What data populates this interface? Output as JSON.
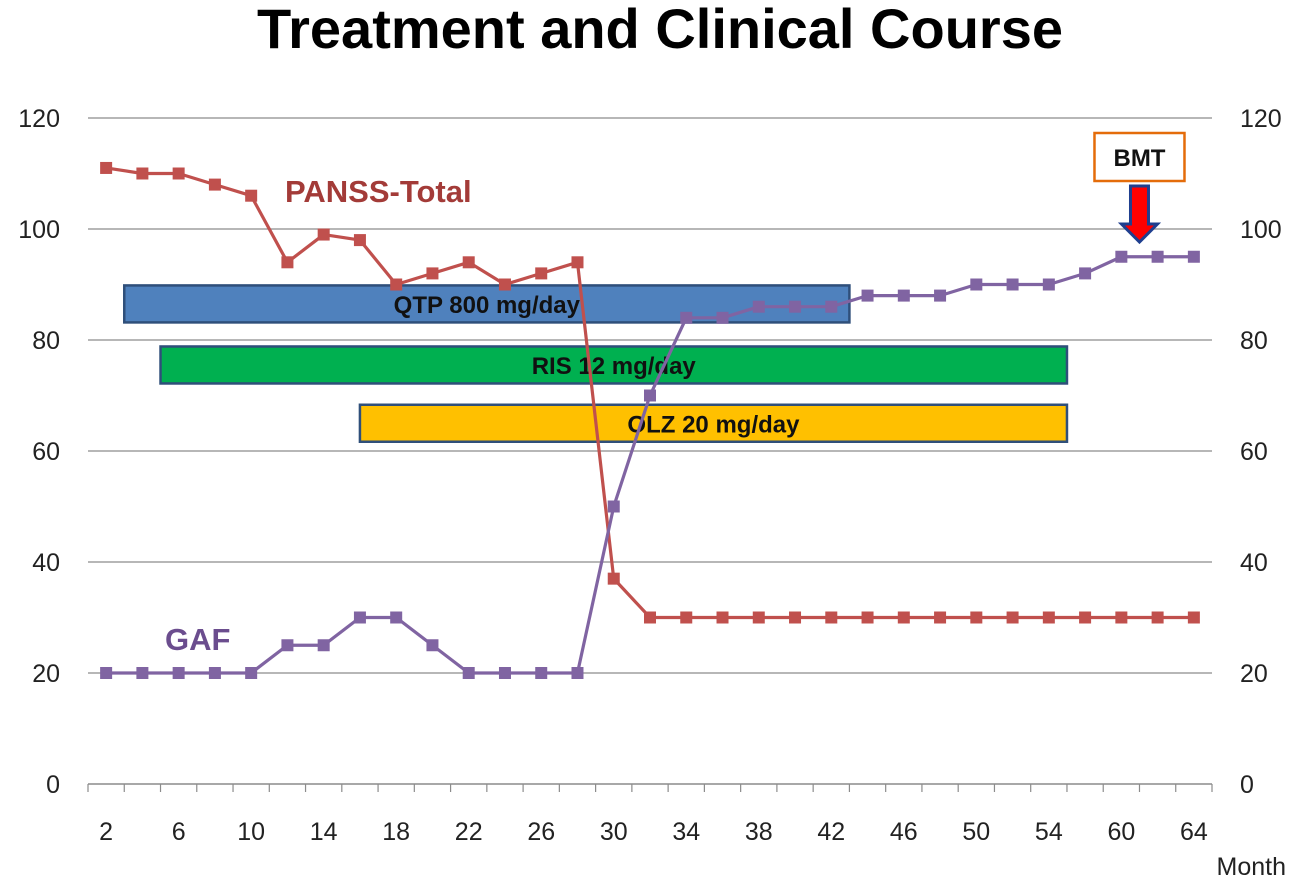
{
  "chart_data": {
    "type": "line",
    "title": "Treatment and Clinical Course",
    "xlabel": "Month",
    "ylabel": "",
    "ylim": [
      0,
      120
    ],
    "yticks": [
      0,
      20,
      40,
      60,
      80,
      100,
      120
    ],
    "x_tick_labels": [
      "2",
      "6",
      "10",
      "14",
      "18",
      "22",
      "26",
      "30",
      "34",
      "38",
      "42",
      "46",
      "50",
      "54",
      "60",
      "64"
    ],
    "point_count": 31,
    "series": [
      {
        "name": "PANSS-Total",
        "color": "#C0504D",
        "values": [
          111,
          110,
          110,
          108,
          106,
          94,
          99,
          98,
          90,
          92,
          94,
          90,
          92,
          94,
          37,
          30,
          30,
          30,
          30,
          30,
          30,
          30,
          30,
          30,
          30,
          30,
          30,
          30,
          30,
          30,
          30
        ]
      },
      {
        "name": "GAF",
        "color": "#8064A2",
        "values": [
          20,
          20,
          20,
          20,
          20,
          25,
          25,
          30,
          30,
          25,
          20,
          20,
          20,
          20,
          50,
          70,
          84,
          84,
          86,
          86,
          86,
          88,
          88,
          88,
          90,
          90,
          90,
          92,
          95,
          95,
          95
        ]
      }
    ],
    "series_labels": {
      "panss": "PANSS-Total",
      "gaf": "GAF"
    },
    "treatments": [
      {
        "label": "QTP  800 mg/day",
        "start": 1,
        "end": 21,
        "color": "#4F81BD"
      },
      {
        "label": "RIS  12 mg/day",
        "start": 2,
        "end": 27,
        "color": "#00B050"
      },
      {
        "label": "OLZ  20 mg/day",
        "start": 7.5,
        "end": 27,
        "color": "#FFC000"
      }
    ],
    "event": {
      "label": "BMT",
      "x": 29
    },
    "grid": true
  }
}
